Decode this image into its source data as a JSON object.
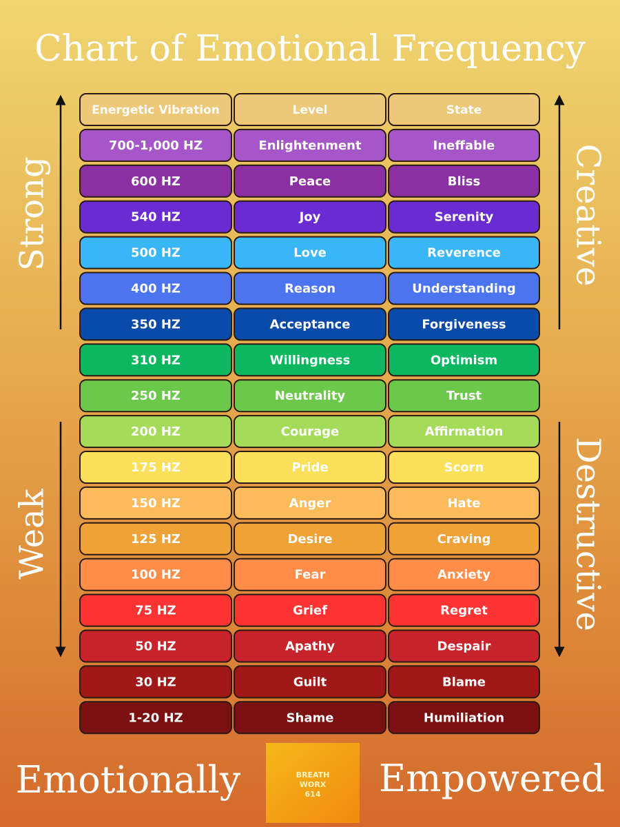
{
  "header": {
    "title": "Chart of Emotional Frequency"
  },
  "table": {
    "header": {
      "cells": [
        "Energetic Vibration",
        "Level",
        "State"
      ],
      "color": "#ecc878"
    },
    "rows": [
      {
        "cells": [
          "700-1,000 HZ",
          "Enlightenment",
          "Ineffable"
        ],
        "color": "#a656c8"
      },
      {
        "cells": [
          "600 HZ",
          "Peace",
          "Bliss"
        ],
        "color": "#8a30a2"
      },
      {
        "cells": [
          "540 HZ",
          "Joy",
          "Serenity"
        ],
        "color": "#6a2cd2"
      },
      {
        "cells": [
          "500 HZ",
          "Love",
          "Reverence"
        ],
        "color": "#38b6f5"
      },
      {
        "cells": [
          "400 HZ",
          "Reason",
          "Understanding"
        ],
        "color": "#4d74f0"
      },
      {
        "cells": [
          "350 HZ",
          "Acceptance",
          "Forgiveness"
        ],
        "color": "#0a4aa8"
      },
      {
        "cells": [
          "310 HZ",
          "Willingness",
          "Optimism"
        ],
        "color": "#0cb760"
      },
      {
        "cells": [
          "250 HZ",
          "Neutrality",
          "Trust"
        ],
        "color": "#6cc84a"
      },
      {
        "cells": [
          "200 HZ",
          "Courage",
          "Affirmation"
        ],
        "color": "#a4dc5a"
      },
      {
        "cells": [
          "175 HZ",
          "Pride",
          "Scorn"
        ],
        "color": "#fde05a"
      },
      {
        "cells": [
          "150 HZ",
          "Anger",
          "Hate"
        ],
        "color": "#fcbb5a"
      },
      {
        "cells": [
          "125 HZ",
          "Desire",
          "Craving"
        ],
        "color": "#eea238"
      },
      {
        "cells": [
          "100 HZ",
          "Fear",
          "Anxiety"
        ],
        "color": "#ff8c48"
      },
      {
        "cells": [
          "75 HZ",
          "Grief",
          "Regret"
        ],
        "color": "#fc3434"
      },
      {
        "cells": [
          "50 HZ",
          "Apathy",
          "Despair"
        ],
        "color": "#c8222a"
      },
      {
        "cells": [
          "30 HZ",
          "Guilt",
          "Blame"
        ],
        "color": "#a01818"
      },
      {
        "cells": [
          "1-20 HZ",
          "Shame",
          "Humiliation"
        ],
        "color": "#7a1010"
      }
    ]
  },
  "sides": {
    "strong": "Strong",
    "weak": "Weak",
    "creative": "Creative",
    "destructive": "Destructive"
  },
  "footer": {
    "left": "Emotionally",
    "right": "Empowered",
    "logo": [
      "BREATH",
      "WORX",
      "614"
    ]
  }
}
